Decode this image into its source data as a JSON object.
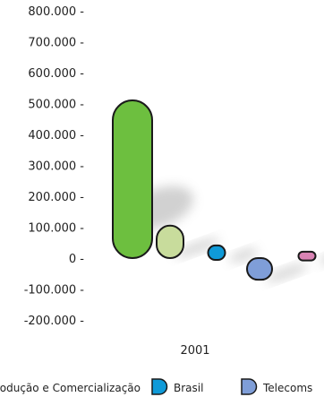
{
  "chart_data": {
    "type": "bar",
    "categories": [
      "2001"
    ],
    "series": [
      {
        "name": "Produção e Comercialização",
        "values": [
          510000
        ],
        "color": "#6dbf3f",
        "show_in_legend": true
      },
      {
        "name": "",
        "values": [
          105000
        ],
        "color": "#c8dc9c",
        "show_in_legend": false
      },
      {
        "name": "Brasil",
        "values": [
          35000
        ],
        "color": "#0f9ad8",
        "show_in_legend": true
      },
      {
        "name": "Telecoms",
        "values": [
          -70000
        ],
        "color": "#7f9ed8",
        "show_in_legend": true
      },
      {
        "name": "",
        "values": [
          15000
        ],
        "color": "#d983b4",
        "show_in_legend": false
      }
    ],
    "ylim": [
      -200000,
      800000
    ],
    "yticks": [
      {
        "value": 800000,
        "label": "800.000 -"
      },
      {
        "value": 700000,
        "label": "700.000 -"
      },
      {
        "value": 600000,
        "label": "600.000 -"
      },
      {
        "value": 500000,
        "label": "500.000 -"
      },
      {
        "value": 400000,
        "label": "400.000 -"
      },
      {
        "value": 300000,
        "label": "300.000 -"
      },
      {
        "value": 200000,
        "label": "200.000 -"
      },
      {
        "value": 100000,
        "label": "100.000 -"
      },
      {
        "value": 0,
        "label": "0 -"
      },
      {
        "value": -100000,
        "label": "-100.000 -"
      },
      {
        "value": -200000,
        "label": "-200.000 -"
      }
    ],
    "title": "",
    "xlabel": "",
    "ylabel": "",
    "grid": false,
    "legend_position": "bottom"
  }
}
